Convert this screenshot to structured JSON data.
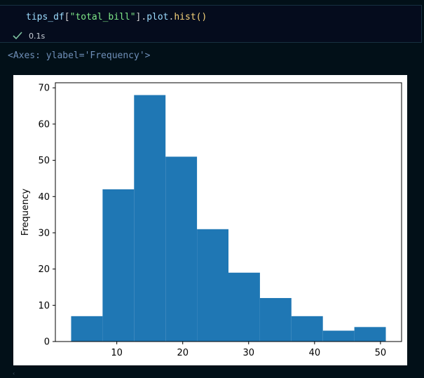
{
  "cell": {
    "code_tokens": [
      {
        "text": "tips_df",
        "cls": "tok-ident"
      },
      {
        "text": "[",
        "cls": "tok-punct"
      },
      {
        "text": "\"total_bill\"",
        "cls": "tok-str"
      },
      {
        "text": "].",
        "cls": "tok-punct"
      },
      {
        "text": "plot",
        "cls": "tok-ident"
      },
      {
        "text": ".",
        "cls": "tok-punct"
      },
      {
        "text": "hist",
        "cls": "tok-fn"
      },
      {
        "text": "()",
        "cls": "tok-fn"
      }
    ],
    "exec_time": "0.1s",
    "status_color": "#7ec3a0"
  },
  "output": {
    "repr": "<Axes: ylabel='Frequency'>"
  },
  "chart_data": {
    "type": "bar",
    "title": "",
    "xlabel": "",
    "ylabel": "Frequency",
    "bin_edges": [
      3.07,
      7.844,
      12.618,
      17.392,
      22.166,
      26.94,
      31.714,
      36.488,
      41.262,
      46.036,
      50.81
    ],
    "values": [
      7,
      42,
      68,
      51,
      31,
      19,
      12,
      7,
      3,
      4
    ],
    "xlim": [
      0.68,
      53.2
    ],
    "ylim": [
      0,
      71.4
    ],
    "xticks": [
      10,
      20,
      30,
      40,
      50
    ],
    "yticks": [
      0,
      10,
      20,
      30,
      40,
      50,
      60,
      70
    ],
    "bar_color": "#1f77b4",
    "grid": false,
    "legend": "none"
  },
  "footer_mark": "‹"
}
